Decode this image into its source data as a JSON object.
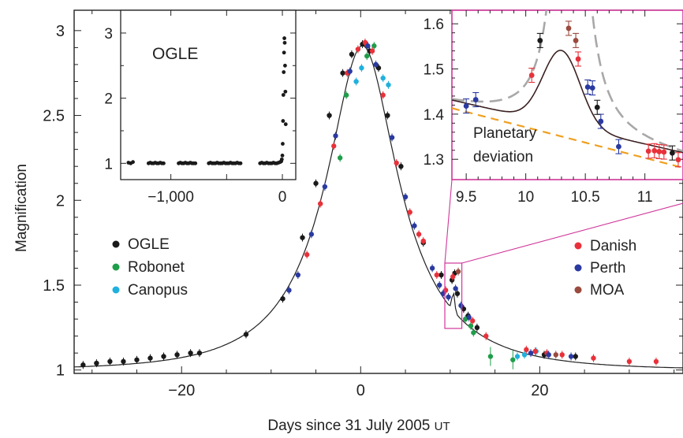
{
  "chart_data": [
    {
      "id": "main",
      "type": "scatter",
      "xlabel": "Days since 31 July 2005",
      "xlabel_suffix": "UT",
      "ylabel": "Magnification",
      "xlim": [
        -32,
        36
      ],
      "ylim": [
        0.98,
        3.12
      ],
      "x_ticks": [
        -20,
        0,
        20
      ],
      "x_tick_labels": [
        "−20",
        "0",
        "20"
      ],
      "y_ticks": [
        1,
        1.5,
        2,
        2.5,
        3
      ],
      "y_tick_labels": [
        "1",
        "1.5",
        "2",
        "2.5",
        "3"
      ],
      "model_curve": {
        "t0": 0.2,
        "u0": 0.36,
        "tE": 11
      },
      "legend_left": [
        "OGLE",
        "Robonet",
        "Canopus"
      ],
      "legend_right": [
        "Danish",
        "Perth",
        "MOA"
      ],
      "series": [
        {
          "name": "OGLE",
          "color": "#1a1a1a",
          "x": [
            -31,
            -29.5,
            -28,
            -26.5,
            -25,
            -23.5,
            -22,
            -20.5,
            -19,
            -18,
            -12.8,
            -8.7,
            -6.5,
            -5,
            -3.5,
            -2,
            -1,
            0.2,
            1,
            2,
            3,
            4.5,
            7,
            9,
            10.2,
            10.5,
            10.8,
            11.5,
            12,
            13,
            20.5,
            24
          ],
          "y": [
            1.03,
            1.04,
            1.05,
            1.05,
            1.06,
            1.07,
            1.08,
            1.09,
            1.1,
            1.1,
            1.21,
            1.42,
            1.78,
            2.1,
            2.5,
            2.75,
            2.86,
            2.92,
            2.88,
            2.78,
            2.5,
            2.2,
            1.75,
            1.56,
            1.53,
            1.57,
            1.45,
            1.36,
            1.32,
            1.25,
            1.09,
            1.08
          ]
        },
        {
          "name": "Robonet",
          "color": "#1f9e4a",
          "x": [
            -2.3,
            -1.6,
            0.7,
            1.5,
            11.7,
            12.3,
            12.6,
            14.5,
            17
          ],
          "y": [
            2.25,
            2.62,
            2.85,
            2.91,
            1.3,
            1.26,
            1.22,
            1.08,
            1.06
          ]
        },
        {
          "name": "Canopus",
          "color": "#1fb0de",
          "x": [
            -0.5,
            0.1,
            2.5,
            3.1,
            17.5,
            18.3,
            19.6
          ],
          "y": [
            2.7,
            2.78,
            2.72,
            2.68,
            1.08,
            1.09,
            1.11
          ]
        },
        {
          "name": "Danish",
          "color": "#e8313a",
          "x": [
            -6,
            -4.5,
            -3,
            -1.5,
            -0.3,
            0.5,
            1.3,
            2.5,
            4,
            5.5,
            6.5,
            7,
            8.5,
            9.5,
            10.3,
            12.5,
            14,
            18.5,
            19.5,
            20.8,
            22.5,
            26,
            30,
            33
          ],
          "y": [
            1.68,
            1.98,
            2.32,
            2.75,
            2.89,
            2.93,
            2.88,
            2.62,
            2.22,
            1.93,
            1.8,
            1.76,
            1.56,
            1.47,
            1.55,
            1.29,
            1.2,
            1.12,
            1.11,
            1.1,
            1.09,
            1.07,
            1.05,
            1.05
          ]
        },
        {
          "name": "Perth",
          "color": "#2a3aa0",
          "x": [
            -8,
            -7,
            -5.5,
            -4,
            -2.8,
            -1.2,
            0.8,
            1.7,
            3.5,
            5,
            6,
            8,
            8.8,
            9.2,
            9.8,
            10.6,
            11.2,
            12.1,
            19,
            21,
            23.5
          ],
          "y": [
            1.47,
            1.56,
            1.8,
            2.08,
            2.38,
            2.76,
            2.91,
            2.8,
            2.37,
            2.02,
            1.85,
            1.6,
            1.5,
            1.45,
            1.43,
            1.48,
            1.38,
            1.31,
            1.1,
            1.09,
            1.08
          ]
        },
        {
          "name": "MOA",
          "color": "#9b4a3e",
          "x": [
            10.9,
            21.8
          ],
          "y": [
            1.58,
            1.09
          ]
        }
      ]
    },
    {
      "id": "inset_ogle",
      "type": "scatter",
      "title": "OGLE",
      "xlim": [
        -1450,
        120
      ],
      "ylim": [
        0.75,
        3.35
      ],
      "x_ticks": [
        -1000,
        0
      ],
      "x_tick_labels": [
        "−1,000",
        "0"
      ],
      "y_ticks": [
        1,
        2,
        3
      ],
      "y_tick_labels": [
        "1",
        "2",
        "3"
      ],
      "series": [
        {
          "name": "OGLE",
          "color": "#1a1a1a",
          "x": [
            -1380,
            -1360,
            -1340,
            -1200,
            -1185,
            -1170,
            -1155,
            -1140,
            -1125,
            -1110,
            -1095,
            -1080,
            -1065,
            -930,
            -915,
            -900,
            -885,
            -870,
            -855,
            -840,
            -825,
            -810,
            -795,
            -780,
            -660,
            -645,
            -630,
            -615,
            -600,
            -585,
            -570,
            -555,
            -540,
            -525,
            -510,
            -495,
            -480,
            -465,
            -450,
            -435,
            -420,
            -405,
            -390,
            -375,
            -200,
            -185,
            -170,
            -155,
            -140,
            -125,
            -110,
            -95,
            -80,
            -65,
            -50,
            -35,
            -20,
            -10,
            -5,
            0,
            3,
            6,
            9,
            12,
            15,
            18,
            21,
            24,
            27,
            30
          ],
          "y": [
            1.01,
            1.0,
            1.02,
            1.0,
            1.01,
            1.0,
            1.0,
            1.01,
            1.0,
            1.0,
            1.01,
            1.0,
            1.0,
            1.0,
            1.01,
            1.0,
            1.0,
            1.01,
            1.0,
            1.0,
            1.01,
            1.0,
            1.0,
            1.0,
            1.0,
            1.01,
            1.0,
            1.0,
            1.0,
            1.01,
            1.0,
            1.0,
            1.0,
            1.01,
            1.0,
            1.0,
            1.0,
            1.01,
            1.0,
            1.0,
            1.0,
            1.01,
            1.0,
            1.0,
            1.0,
            1.01,
            1.0,
            1.0,
            1.01,
            1.0,
            1.0,
            1.0,
            1.01,
            1.0,
            1.0,
            1.01,
            1.02,
            1.03,
            1.06,
            1.12,
            1.3,
            1.65,
            2.05,
            2.4,
            2.7,
            2.92,
            2.85,
            2.5,
            2.1,
            1.6
          ]
        }
      ]
    },
    {
      "id": "inset_zoom",
      "type": "scatter",
      "title": "Planetary deviation",
      "xlim": [
        9.38,
        11.32
      ],
      "ylim": [
        1.255,
        1.63
      ],
      "x_ticks": [
        9.5,
        10,
        10.5,
        11
      ],
      "x_tick_labels": [
        "9.5",
        "10",
        "10.5",
        "11"
      ],
      "y_ticks": [
        1.3,
        1.4,
        1.5,
        1.6
      ],
      "y_tick_labels": [
        "1.3",
        "1.4",
        "1.5",
        "1.6"
      ],
      "series": [
        {
          "name": "Perth",
          "color": "#2a3aa0",
          "x": [
            9.5,
            9.58,
            10.52,
            10.56,
            10.63,
            10.78
          ],
          "y": [
            1.418,
            1.432,
            1.46,
            1.458,
            1.384,
            1.328
          ]
        },
        {
          "name": "OGLE",
          "color": "#1a1a1a",
          "x": [
            10.12,
            10.6,
            11.23
          ],
          "y": [
            1.563,
            1.415,
            1.314
          ]
        },
        {
          "name": "Danish",
          "color": "#e8313a",
          "x": [
            10.05,
            10.44,
            11.03,
            11.08,
            11.12,
            11.16,
            11.28
          ],
          "y": [
            1.486,
            1.522,
            1.318,
            1.319,
            1.317,
            1.316,
            1.299
          ]
        },
        {
          "name": "MOA",
          "color": "#9b4a3e",
          "x": [
            10.36,
            10.42
          ],
          "y": [
            1.59,
            1.563
          ]
        }
      ]
    }
  ]
}
